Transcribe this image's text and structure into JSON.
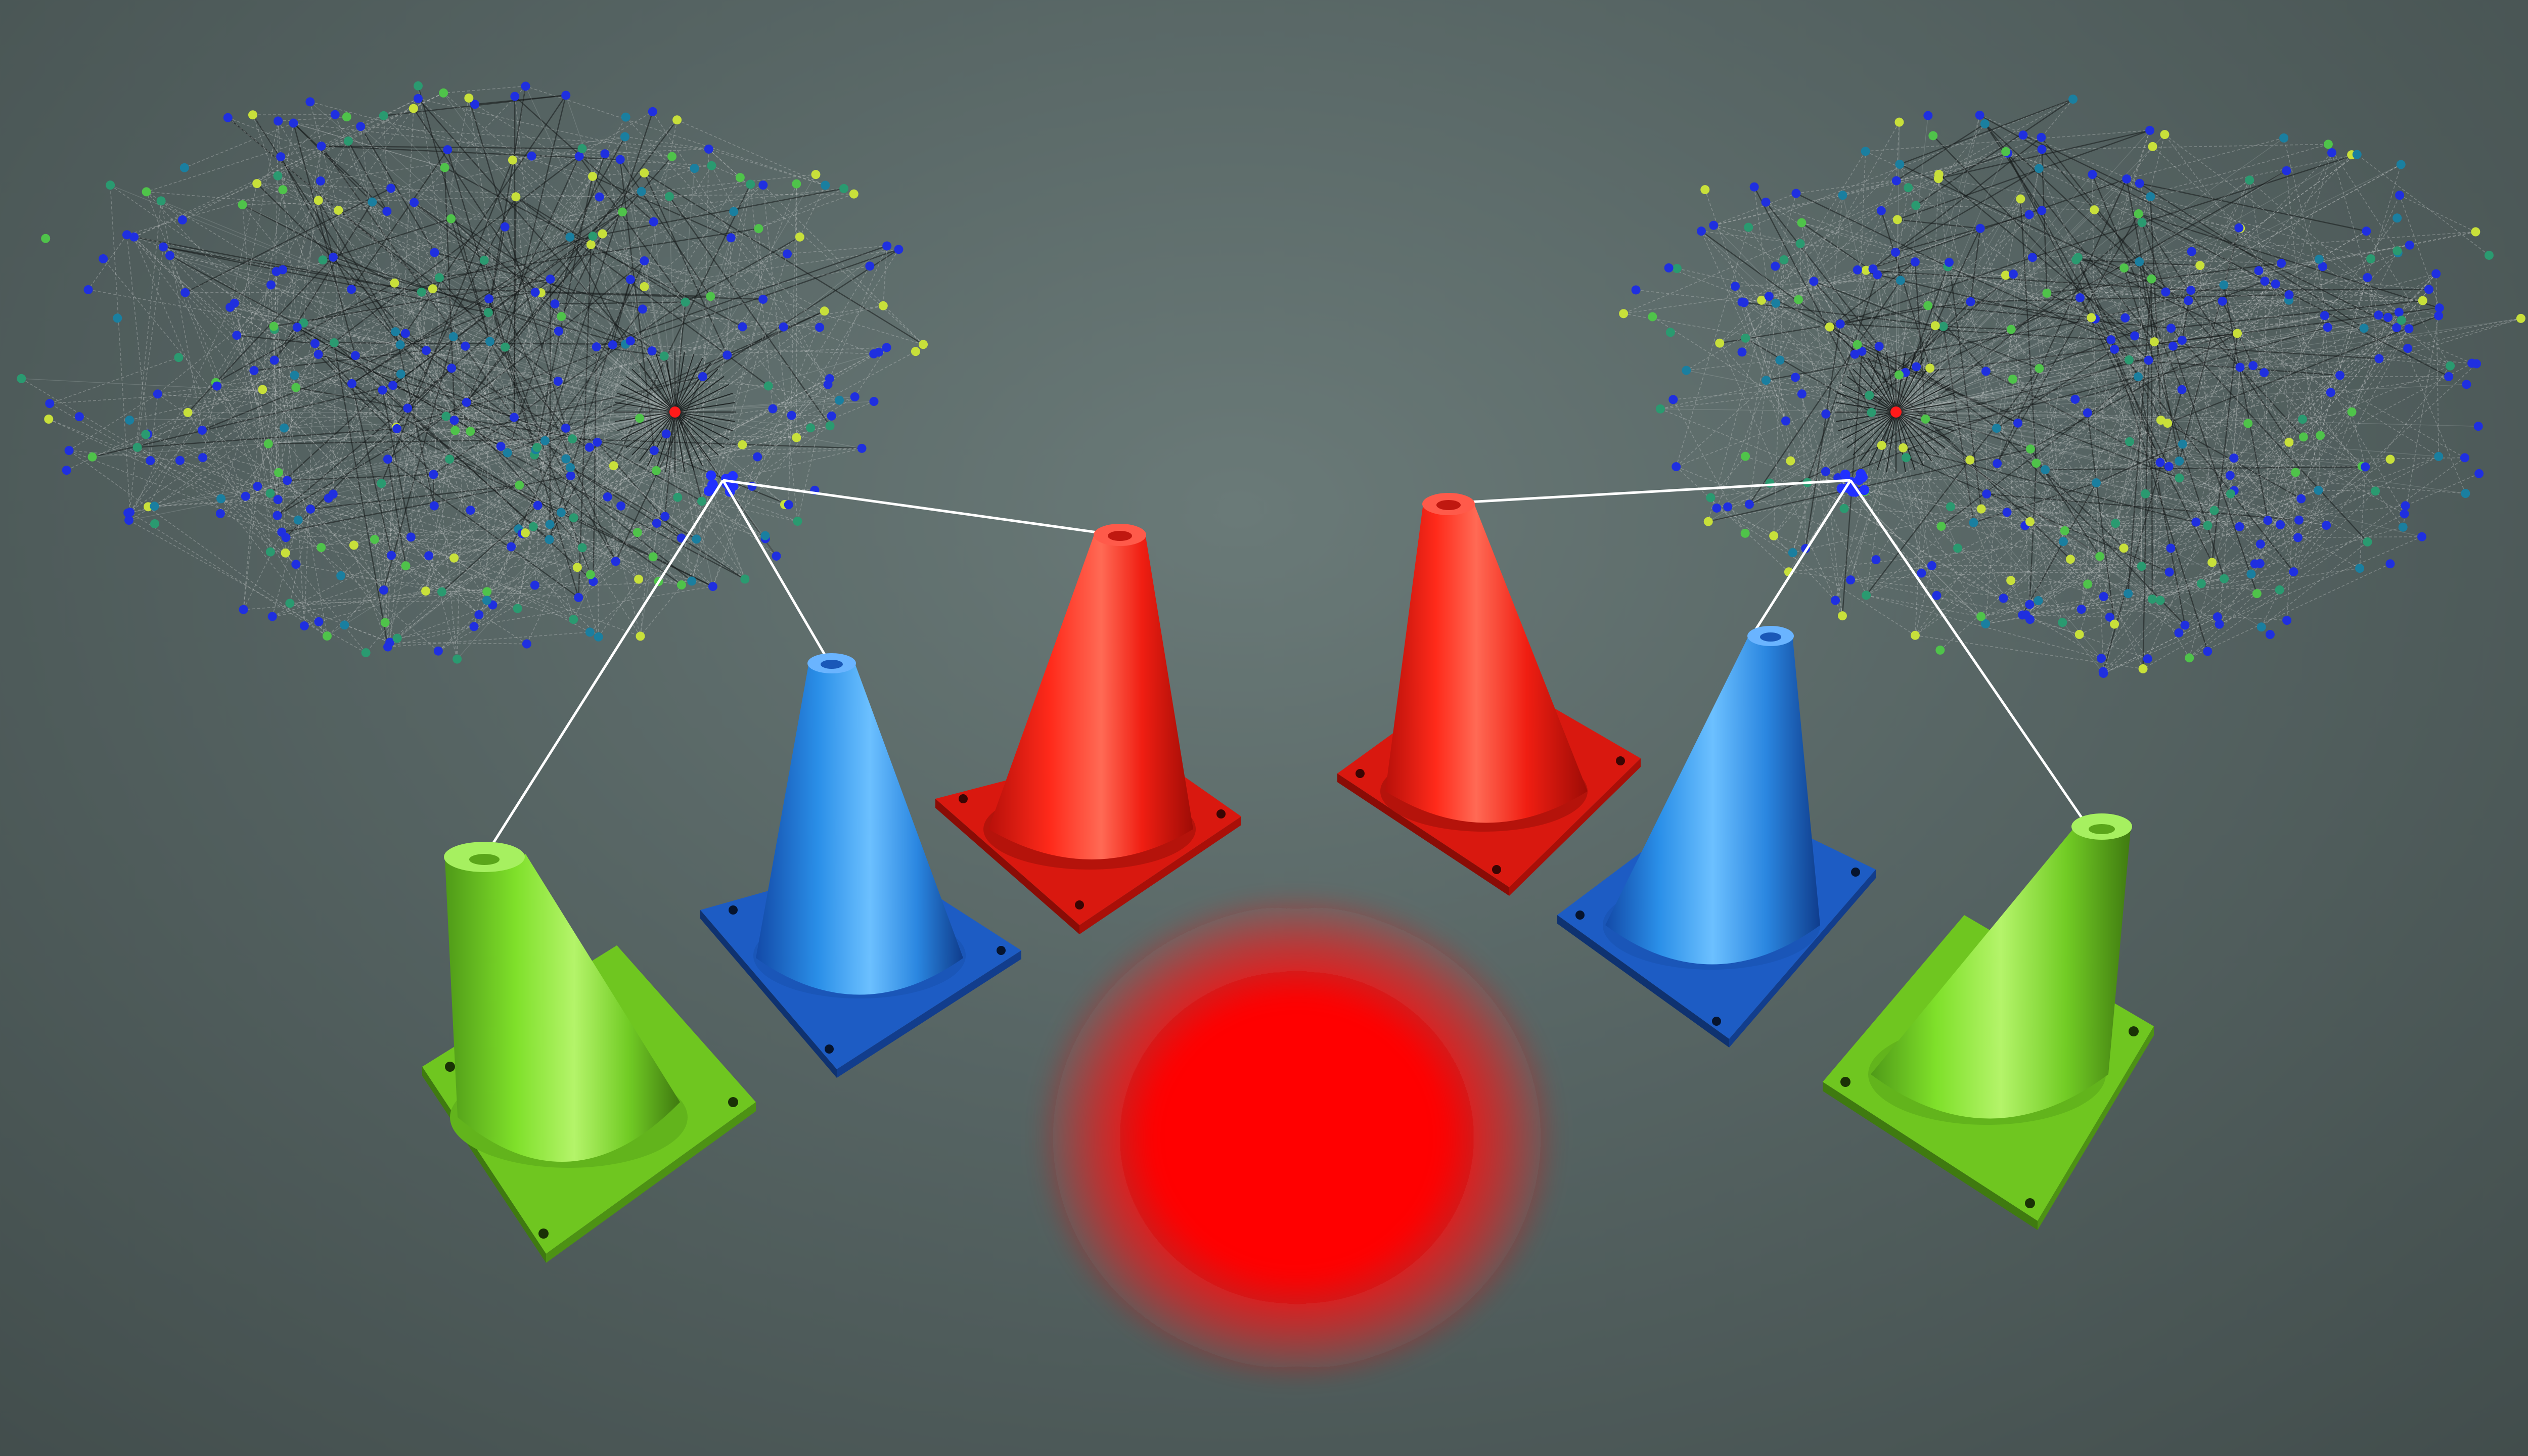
{
  "scene": {
    "background": "#566463",
    "line_color": "#ffffff",
    "glow_color": "#ff0000",
    "networks": [
      {
        "id": "network-left",
        "hub_color": "#ff1a1a",
        "node_palette": [
          "#1f2fe0",
          "#1f2fe0",
          "#1f2fe0",
          "#1f2fe0",
          "#1a7fa0",
          "#2a9a70",
          "#4fc34a",
          "#c8e03a"
        ],
        "cluster_color": "#2030ff"
      },
      {
        "id": "network-right",
        "hub_color": "#ff1a1a",
        "node_palette": [
          "#1f2fe0",
          "#1f2fe0",
          "#1f2fe0",
          "#1f2fe0",
          "#1a7fa0",
          "#2a9a70",
          "#4fc34a",
          "#c8e03a"
        ],
        "cluster_color": "#2030ff"
      }
    ],
    "cones": [
      {
        "id": "cone-left-green",
        "color": "#7fe02a",
        "shade": "#4f9a18",
        "base": "#72cc25"
      },
      {
        "id": "cone-left-blue",
        "color": "#2a8fe8",
        "shade": "#1550a8",
        "base": "#1e5fc8"
      },
      {
        "id": "cone-left-red",
        "color": "#ff2a1a",
        "shade": "#a80f08",
        "base": "#e01a10"
      },
      {
        "id": "cone-right-red",
        "color": "#ff2a1a",
        "shade": "#a80f08",
        "base": "#e01a10"
      },
      {
        "id": "cone-right-blue",
        "color": "#2a8fe8",
        "shade": "#1550a8",
        "base": "#1e5fc8"
      },
      {
        "id": "cone-right-green",
        "color": "#7fe02a",
        "shade": "#4f9a18",
        "base": "#72cc25"
      }
    ]
  }
}
